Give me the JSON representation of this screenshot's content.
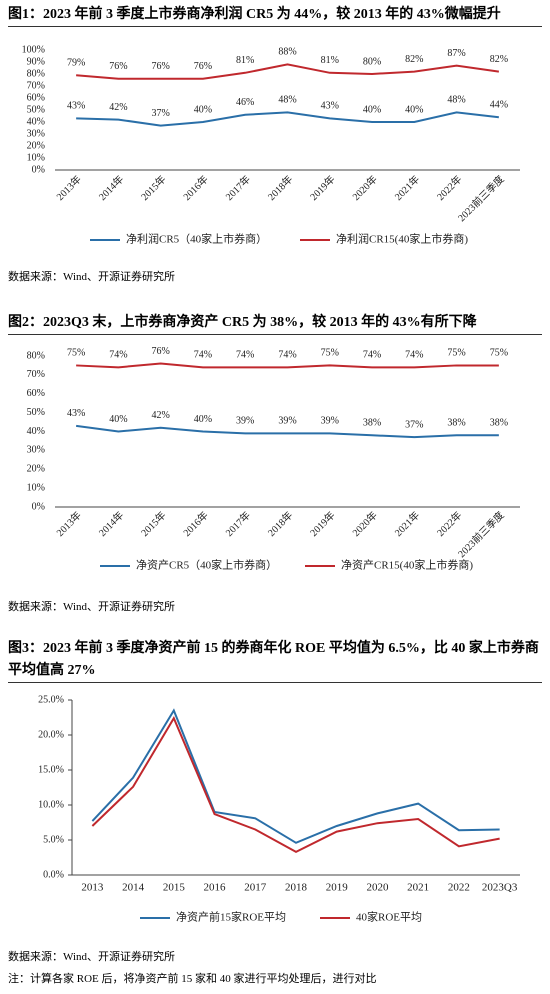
{
  "chart_data": [
    {
      "type": "line",
      "title": "图1：2023 年前 3 季度上市券商净利润 CR5 为 44%，较 2013 年的 43%微幅提升",
      "categories": [
        "2013年",
        "2014年",
        "2015年",
        "2016年",
        "2017年",
        "2018年",
        "2019年",
        "2020年",
        "2021年",
        "2022年",
        "2023前三季度"
      ],
      "series": [
        {
          "name": "净利润CR5（40家上市券商）",
          "color": "#2a6fa8",
          "values": [
            43,
            42,
            37,
            40,
            46,
            48,
            43,
            40,
            40,
            48,
            44
          ],
          "value_labels": [
            "43%",
            "42%",
            "37%",
            "40%",
            "46%",
            "48%",
            "43%",
            "40%",
            "40%",
            "48%",
            "44%"
          ]
        },
        {
          "name": "净利润CR15(40家上市券商)",
          "color": "#c0282d",
          "values": [
            79,
            76,
            76,
            76,
            81,
            88,
            81,
            80,
            82,
            87,
            82
          ],
          "value_labels": [
            "79%",
            "76%",
            "76%",
            "76%",
            "81%",
            "88%",
            "81%",
            "80%",
            "82%",
            "87%",
            "82%"
          ]
        }
      ],
      "ylim": [
        0,
        100
      ],
      "yticks": [
        {
          "value": 0,
          "label": "0%"
        },
        {
          "value": 10,
          "label": "10%"
        },
        {
          "value": 20,
          "label": "20%"
        },
        {
          "value": 30,
          "label": "30%"
        },
        {
          "value": 40,
          "label": "40%"
        },
        {
          "value": 50,
          "label": "50%"
        },
        {
          "value": 60,
          "label": "60%"
        },
        {
          "value": 70,
          "label": "70%"
        },
        {
          "value": 80,
          "label": "80%"
        },
        {
          "value": 90,
          "label": "90%"
        },
        {
          "value": 100,
          "label": "100%"
        }
      ],
      "source": "数据来源：Wind、开源证券研究所"
    },
    {
      "type": "line",
      "title": "图2：2023Q3 末，上市券商净资产 CR5 为 38%，较 2013 年的 43%有所下降",
      "categories": [
        "2013年",
        "2014年",
        "2015年",
        "2016年",
        "2017年",
        "2018年",
        "2019年",
        "2020年",
        "2021年",
        "2022年",
        "2023前三季度"
      ],
      "series": [
        {
          "name": "净资产CR5（40家上市券商）",
          "color": "#2a6fa8",
          "values": [
            43,
            40,
            42,
            40,
            39,
            39,
            39,
            38,
            37,
            38,
            38
          ],
          "value_labels": [
            "43%",
            "40%",
            "42%",
            "40%",
            "39%",
            "39%",
            "39%",
            "38%",
            "37%",
            "38%",
            "38%"
          ]
        },
        {
          "name": "净资产CR15(40家上市券商)",
          "color": "#c0282d",
          "values": [
            75,
            74,
            76,
            74,
            74,
            74,
            75,
            74,
            74,
            75,
            75
          ],
          "value_labels": [
            "75%",
            "74%",
            "76%",
            "74%",
            "74%",
            "74%",
            "75%",
            "74%",
            "74%",
            "75%",
            "75%"
          ]
        }
      ],
      "ylim": [
        0,
        80
      ],
      "yticks": [
        {
          "value": 0,
          "label": "0%"
        },
        {
          "value": 10,
          "label": "10%"
        },
        {
          "value": 20,
          "label": "20%"
        },
        {
          "value": 30,
          "label": "30%"
        },
        {
          "value": 40,
          "label": "40%"
        },
        {
          "value": 50,
          "label": "50%"
        },
        {
          "value": 60,
          "label": "60%"
        },
        {
          "value": 70,
          "label": "70%"
        },
        {
          "value": 80,
          "label": "80%"
        }
      ],
      "source": "数据来源：Wind、开源证券研究所"
    },
    {
      "type": "line",
      "title": "图3：2023 年前 3 季度净资产前 15 的券商年化 ROE 平均值为 6.5%，比 40 家上市券商平均值高 27%",
      "categories": [
        "2013",
        "2014",
        "2015",
        "2016",
        "2017",
        "2018",
        "2019",
        "2020",
        "2021",
        "2022",
        "2023Q3"
      ],
      "series": [
        {
          "name": "净资产前15家ROE平均",
          "color": "#2a6fa8",
          "values": [
            7.7,
            13.9,
            23.5,
            9.0,
            8.1,
            4.6,
            7.0,
            8.8,
            10.2,
            6.4,
            6.5
          ]
        },
        {
          "name": "40家ROE平均",
          "color": "#c0282d",
          "values": [
            7.0,
            12.6,
            22.4,
            8.7,
            6.5,
            3.3,
            6.2,
            7.4,
            8.0,
            4.1,
            5.2
          ]
        }
      ],
      "ylim": [
        0,
        25
      ],
      "yticks": [
        {
          "value": 0,
          "label": "0.0%"
        },
        {
          "value": 5,
          "label": "5.0%"
        },
        {
          "value": 10,
          "label": "10.0%"
        },
        {
          "value": 15,
          "label": "15.0%"
        },
        {
          "value": 20,
          "label": "20.0%"
        },
        {
          "value": 25,
          "label": "25.0%"
        }
      ],
      "source": "数据来源：Wind、开源证券研究所",
      "note": "注：计算各家 ROE 后，将净资产前 15 家和 40 家进行平均处理后，进行对比"
    }
  ]
}
